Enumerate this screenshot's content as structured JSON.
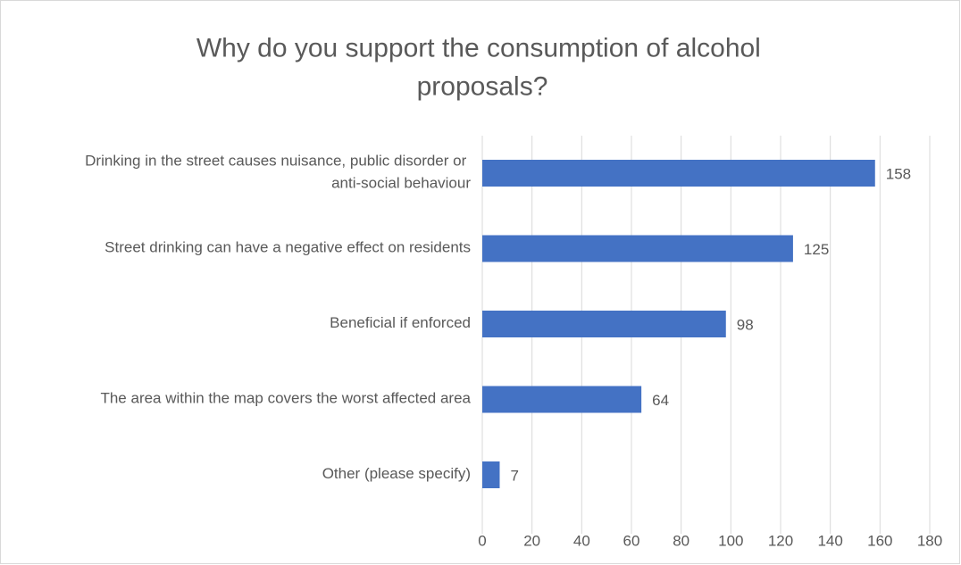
{
  "chart_data": {
    "type": "bar",
    "orientation": "horizontal",
    "title": "Why do you support the consumption of alcohol proposals?",
    "categories": [
      "Drinking in the street causes nuisance, public disorder or anti-social behaviour",
      "Street drinking can have a negative effect on residents",
      "Beneficial if enforced",
      "The area within the map covers the worst affected area",
      "Other (please specify)"
    ],
    "values": [
      158,
      125,
      98,
      64,
      7
    ],
    "color": "#4472c4",
    "xlim": [
      0,
      180
    ],
    "xticks": [
      0,
      20,
      40,
      60,
      80,
      100,
      120,
      140,
      160,
      180
    ],
    "grid": true
  }
}
